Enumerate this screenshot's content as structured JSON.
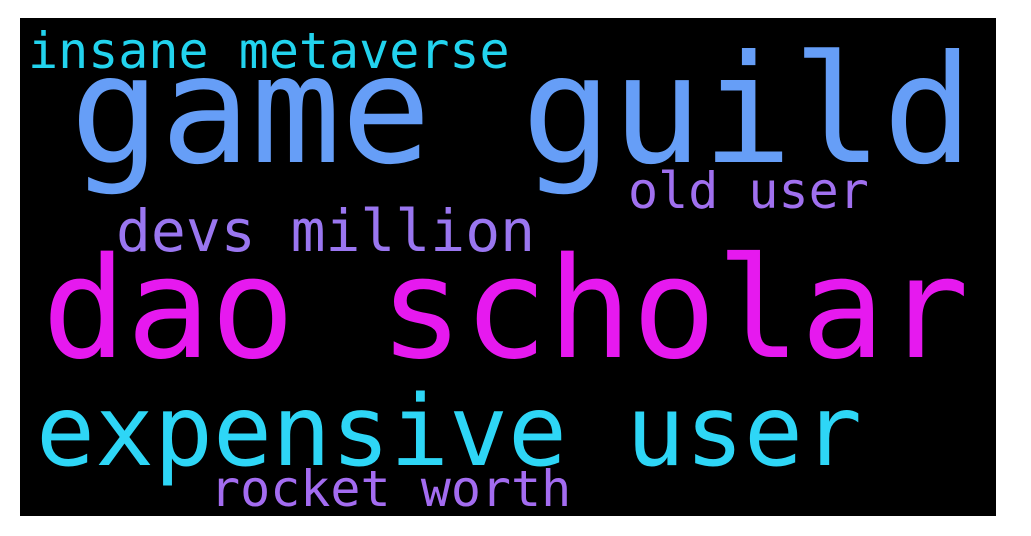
{
  "wordcloud": {
    "background": "#000000",
    "words": [
      {
        "id": "insane",
        "text": "insane metaverse",
        "color": "#22d3ee"
      },
      {
        "id": "game",
        "text": "game guild",
        "color": "#669ef7"
      },
      {
        "id": "old",
        "text": "old user",
        "color": "#a070ef"
      },
      {
        "id": "devs",
        "text": "devs million",
        "color": "#9a76f0"
      },
      {
        "id": "dao",
        "text": "dao scholar",
        "color": "#e619ef"
      },
      {
        "id": "exp",
        "text": "expensive user",
        "color": "#2ed6f6"
      },
      {
        "id": "rocket",
        "text": "rocket worth",
        "color": "#a36cf0"
      }
    ]
  }
}
